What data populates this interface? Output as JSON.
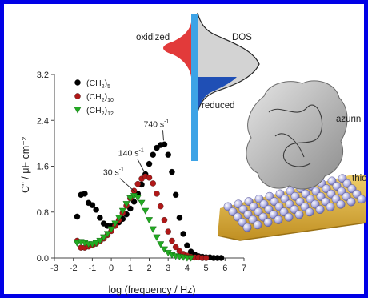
{
  "colors": {
    "frame": "#0000e6",
    "black_series": "#000000",
    "red_series": "#b01818",
    "green_series": "#22aa22",
    "oxidized_fill": "#e23a3a",
    "reduced_fill": "#1f4fb5",
    "dos_fill": "#d3d3d3",
    "electrode_bar": "#3da3e6",
    "gold_surface": "#d8ad3a",
    "sam_spheres": "#b6b6e6",
    "protein": "#b9b9b9"
  },
  "dos_diagram": {
    "oxidized_label": "oxidized",
    "dos_label": "DOS",
    "reduced_label": "reduced"
  },
  "structure_labels": {
    "protein_label": "azurin",
    "layer_label": "thio"
  },
  "chart_data": {
    "type": "scatter",
    "xlabel": "log (frequency / Hz)",
    "ylabel": "C'' / μF cm⁻²",
    "xlim": [
      -3,
      7
    ],
    "ylim": [
      0,
      3.2
    ],
    "xticks": [
      "-3",
      "-2",
      "-1",
      "0",
      "1",
      "2",
      "3",
      "4",
      "5",
      "6",
      "7"
    ],
    "yticks": [
      "0.0",
      "0.8",
      "1.6",
      "2.4",
      "3.2"
    ],
    "legend_position": "top-left",
    "series": [
      {
        "name": "(CH2)5",
        "name_main": "(CH",
        "name_sub": "2",
        "name_close": ")",
        "name_n": "5",
        "color": "#000000",
        "marker": "circle",
        "x": [
          -1.8,
          -1.6,
          -1.4,
          -1.2,
          -1.0,
          -0.8,
          -0.6,
          -0.4,
          -0.2,
          0.0,
          0.2,
          0.4,
          0.6,
          0.8,
          1.0,
          1.2,
          1.4,
          1.6,
          1.8,
          2.0,
          2.2,
          2.4,
          2.6,
          2.8,
          3.0,
          3.2,
          3.4,
          3.6,
          3.8,
          4.0,
          4.2,
          4.4,
          4.6,
          4.8,
          5.0,
          5.2,
          5.4,
          5.6,
          5.8
        ],
        "y": [
          0.72,
          1.1,
          1.12,
          0.96,
          0.92,
          0.84,
          0.7,
          0.6,
          0.56,
          0.55,
          0.58,
          0.62,
          0.68,
          0.76,
          0.86,
          0.98,
          1.12,
          1.28,
          1.46,
          1.64,
          1.8,
          1.92,
          1.97,
          1.98,
          1.8,
          1.5,
          1.1,
          0.7,
          0.42,
          0.22,
          0.11,
          0.06,
          0.03,
          0.02,
          0.01,
          0.01,
          0.0,
          0.0,
          0.0
        ]
      },
      {
        "name": "(CH2)10",
        "name_main": "(CH",
        "name_sub": "2",
        "name_close": ")",
        "name_n": "10",
        "color": "#b01818",
        "marker": "circle",
        "x": [
          -1.8,
          -1.6,
          -1.4,
          -1.2,
          -1.0,
          -0.8,
          -0.6,
          -0.4,
          -0.2,
          0.0,
          0.2,
          0.4,
          0.6,
          0.8,
          1.0,
          1.2,
          1.4,
          1.6,
          1.8,
          2.0,
          2.2,
          2.4,
          2.6,
          2.8,
          3.0,
          3.2,
          3.4,
          3.6,
          3.8,
          4.0,
          4.2,
          4.4,
          4.6,
          4.8,
          5.0
        ],
        "y": [
          0.3,
          0.18,
          0.18,
          0.2,
          0.22,
          0.25,
          0.29,
          0.34,
          0.4,
          0.47,
          0.56,
          0.66,
          0.78,
          0.91,
          1.04,
          1.17,
          1.29,
          1.38,
          1.42,
          1.4,
          1.3,
          1.12,
          0.9,
          0.66,
          0.46,
          0.3,
          0.19,
          0.12,
          0.07,
          0.04,
          0.02,
          0.01,
          0.01,
          0.0,
          0.0
        ]
      },
      {
        "name": "(CH2)12",
        "name_main": "(CH",
        "name_sub": "2",
        "name_close": ")",
        "name_n": "12",
        "color": "#22aa22",
        "marker": "triangle-down",
        "x": [
          -1.8,
          -1.6,
          -1.4,
          -1.2,
          -1.0,
          -0.8,
          -0.6,
          -0.4,
          -0.2,
          0.0,
          0.2,
          0.4,
          0.6,
          0.8,
          1.0,
          1.2,
          1.4,
          1.6,
          1.8,
          2.0,
          2.2,
          2.4,
          2.6,
          2.8,
          3.0,
          3.2,
          3.4,
          3.6,
          3.8,
          4.0,
          4.2
        ],
        "y": [
          0.26,
          0.28,
          0.26,
          0.24,
          0.24,
          0.26,
          0.3,
          0.36,
          0.42,
          0.5,
          0.6,
          0.7,
          0.82,
          0.94,
          1.04,
          1.08,
          1.05,
          0.96,
          0.82,
          0.66,
          0.5,
          0.36,
          0.24,
          0.15,
          0.09,
          0.05,
          0.03,
          0.02,
          0.01,
          0.0,
          0.0
        ]
      }
    ],
    "annotations": [
      {
        "text": "740 s",
        "exp": "-1",
        "x": 2.8,
        "y": 1.98
      },
      {
        "text": "140 s",
        "exp": "-1",
        "x": 1.8,
        "y": 1.42
      },
      {
        "text": "30 s",
        "exp": "-1",
        "x": 1.3,
        "y": 1.08
      }
    ]
  }
}
